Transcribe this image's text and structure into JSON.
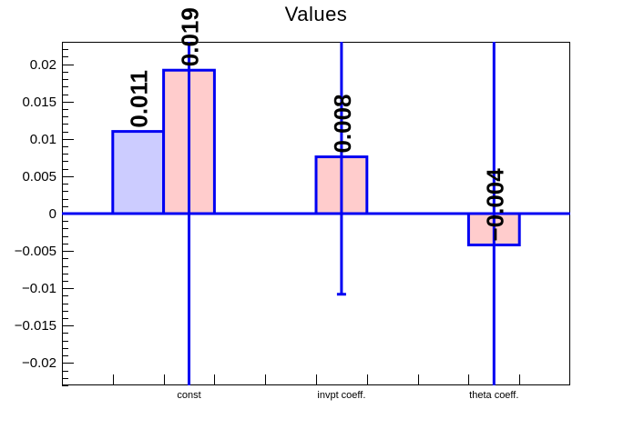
{
  "title": "Values",
  "chart_data": {
    "type": "bar",
    "title": "Values",
    "xlabel": "",
    "ylabel": "",
    "categories": [
      "const",
      "invpt coeff.",
      "theta coeff."
    ],
    "n_bins": 10,
    "category_label_bins": [
      2.5,
      5.5,
      8.5
    ],
    "ylim": [
      -0.023,
      0.023
    ],
    "grid": false,
    "legend": "none",
    "y_major_ticks": [
      {
        "value": 0.02,
        "label": "0.02"
      },
      {
        "value": 0.015,
        "label": "0.015"
      },
      {
        "value": 0.01,
        "label": "0.01"
      },
      {
        "value": 0.005,
        "label": "0.005"
      },
      {
        "value": 0,
        "label": "0"
      },
      {
        "value": -0.005,
        "label": "−0.005"
      },
      {
        "value": -0.01,
        "label": "−0.01"
      },
      {
        "value": -0.015,
        "label": "−0.015"
      },
      {
        "value": -0.02,
        "label": "−0.02"
      }
    ],
    "y_minor_tick_step": 0.001,
    "series": [
      {
        "name": "series-blue",
        "fill": "#ccccff"
      },
      {
        "name": "series-pink",
        "fill": "#ffcccc"
      }
    ],
    "bars": [
      {
        "series": "series-blue",
        "category": "const",
        "bin_start": 1,
        "bin_end": 2,
        "value": 0.011,
        "label": "0.011",
        "fill": "#ccccff"
      },
      {
        "series": "series-pink",
        "category": "const",
        "bin_start": 2,
        "bin_end": 3,
        "value": 0.0192,
        "label": "0.019",
        "fill": "#ffcccc"
      },
      {
        "series": "series-pink",
        "category": "invpt coeff.",
        "bin_start": 5,
        "bin_end": 6,
        "value": 0.0076,
        "label": "0.008",
        "fill": "#ffcccc"
      },
      {
        "series": "series-pink",
        "category": "theta coeff.",
        "bin_start": 8,
        "bin_end": 9,
        "value": -0.0042,
        "label": "−0.004",
        "fill": "#ffcccc"
      }
    ],
    "error_bars": [
      {
        "category": "const",
        "bin_center": 2.5,
        "low": -0.023,
        "high": 0.023,
        "low_clipped": true,
        "high_clipped": true
      },
      {
        "category": "invpt coeff.",
        "bin_center": 5.5,
        "low": -0.0108,
        "high": 0.023,
        "low_clipped": false,
        "high_clipped": true
      },
      {
        "category": "theta coeff.",
        "bin_center": 8.5,
        "low": -0.023,
        "high": 0.023,
        "low_clipped": true,
        "high_clipped": true
      }
    ],
    "colors": {
      "line": "#0000f2",
      "bar_border": "#0000f2",
      "frame": "#000000",
      "text": "#000000",
      "background": "#ffffff"
    }
  }
}
